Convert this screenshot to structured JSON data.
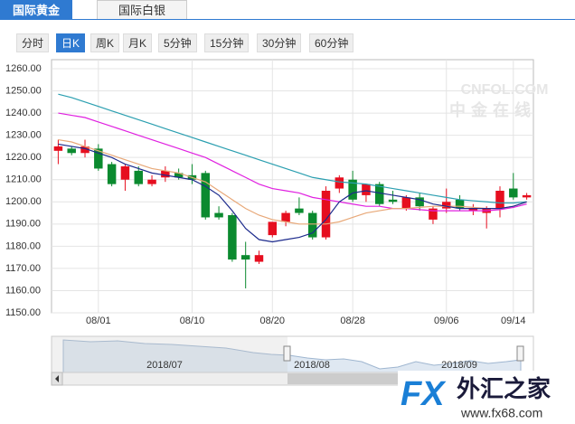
{
  "tabs": [
    "国际黄金",
    "国际白银"
  ],
  "buttons": [
    "分时",
    "日K",
    "周K",
    "月K",
    "5分钟",
    "15分钟",
    "30分钟",
    "60分钟"
  ],
  "watermark": [
    "CNFOL.COM",
    "中金在线"
  ],
  "navigator": {
    "labels": [
      "2018/07",
      "2018/08",
      "2018/09"
    ]
  },
  "logo": {
    "brand": "FX",
    "name": "外汇之家",
    "url": "www.fx68.com"
  },
  "chart_data": {
    "type": "candlestick",
    "categories": [
      null,
      null,
      null,
      "08/01",
      null,
      null,
      null,
      null,
      null,
      null,
      "08/10",
      null,
      null,
      null,
      null,
      null,
      "08/20",
      null,
      null,
      null,
      null,
      null,
      "08/28",
      null,
      null,
      null,
      null,
      null,
      null,
      "09/06",
      null,
      null,
      null,
      null,
      "09/14",
      null
    ],
    "open": [
      1223,
      1224,
      1222,
      1224,
      1217,
      1210,
      1214,
      1208,
      1211,
      1213,
      1212,
      1213,
      1195,
      1194,
      1176,
      1173,
      1185,
      1191,
      1197,
      1195,
      1184,
      1206,
      1210,
      1203,
      1208,
      1201,
      1197,
      1202,
      1192,
      1197,
      1201,
      1196,
      1195,
      1197,
      1206,
      1202
    ],
    "high": [
      1228,
      1225,
      1228,
      1226,
      1218,
      1217,
      1216,
      1212,
      1216,
      1215,
      1217,
      1214,
      1198,
      1195,
      1182,
      1178,
      1191,
      1196,
      1202,
      1196,
      1207,
      1212,
      1214,
      1208,
      1209,
      1205,
      1203,
      1204,
      1198,
      1206,
      1203,
      1199,
      1198,
      1207,
      1213,
      1204
    ],
    "low": [
      1217,
      1221,
      1220,
      1214,
      1207,
      1205,
      1207,
      1207,
      1209,
      1210,
      1208,
      1192,
      1192,
      1173,
      1161,
      1172,
      1184,
      1189,
      1194,
      1183,
      1183,
      1204,
      1200,
      1200,
      1198,
      1199,
      1196,
      1196,
      1190,
      1195,
      1196,
      1194,
      1188,
      1193,
      1201,
      1201
    ],
    "close": [
      1225,
      1222,
      1225,
      1215,
      1208,
      1216,
      1208,
      1210,
      1214,
      1211,
      1210,
      1193,
      1193,
      1174,
      1174,
      1176,
      1191,
      1195,
      1195,
      1184,
      1205,
      1211,
      1201,
      1208,
      1199,
      1200,
      1202,
      1198,
      1197,
      1200,
      1197,
      1197,
      1197,
      1205,
      1202,
      1203
    ],
    "up_color": "#e60e1f",
    "down_color": "#0b8a2f",
    "lines": [
      {
        "color": "#2b9fb0",
        "values": [
          1248.5,
          1247,
          1245,
          1243,
          1241,
          1239,
          1237,
          1235,
          1233,
          1231,
          1229,
          1227,
          1225,
          1223,
          1221,
          1219,
          1217,
          1215,
          1213,
          1211,
          1210,
          1209,
          1208.5,
          1208,
          1207,
          1206,
          1205,
          1204,
          1203,
          1202,
          1201,
          1200.5,
          1200,
          1199.5,
          1199.5,
          1200
        ]
      },
      {
        "color": "#e020e0",
        "values": [
          1240,
          1239,
          1238,
          1236,
          1234,
          1232,
          1230,
          1228,
          1226,
          1224,
          1222,
          1220,
          1217,
          1214,
          1211,
          1208,
          1206,
          1205,
          1204,
          1202,
          1201,
          1200,
          1199,
          1198,
          1198,
          1197,
          1197,
          1196.5,
          1196,
          1196,
          1196,
          1196,
          1196,
          1196.5,
          1197.5,
          1199
        ]
      },
      {
        "color": "#e8a878",
        "values": [
          1228,
          1227,
          1225,
          1223,
          1221,
          1219,
          1217,
          1215,
          1214,
          1213,
          1211,
          1209,
          1205,
          1201,
          1197,
          1194,
          1192,
          1191,
          1190,
          1190,
          1190,
          1191,
          1193,
          1195,
          1196,
          1197,
          1197,
          1197.5,
          1198,
          1198,
          1198,
          1197.5,
          1197,
          1197,
          1198,
          1200
        ]
      },
      {
        "color": "#1c2a8c",
        "values": [
          1226,
          1225,
          1224,
          1222,
          1220,
          1217,
          1215,
          1213,
          1212,
          1211,
          1210,
          1207,
          1203,
          1196,
          1188,
          1183,
          1182,
          1183,
          1184,
          1186,
          1192,
          1200,
          1204,
          1205,
          1204,
          1203,
          1202,
          1201,
          1199,
          1198,
          1197,
          1197,
          1197,
          1197,
          1198,
          1200
        ]
      }
    ],
    "ylim": [
      1150,
      1260
    ],
    "yticks": [
      {
        "value": 1150,
        "label": "1150.00"
      },
      {
        "value": 1160,
        "label": "1160.00"
      },
      {
        "value": 1170,
        "label": "1170.00"
      },
      {
        "value": 1180,
        "label": "1180.00"
      },
      {
        "value": 1190,
        "label": "1190.00"
      },
      {
        "value": 1200,
        "label": "1200.00"
      },
      {
        "value": 1210,
        "label": "1210.00"
      },
      {
        "value": 1220,
        "label": "1220.00"
      },
      {
        "value": 1230,
        "label": "1230.00"
      },
      {
        "value": 1240,
        "label": "1240.00"
      },
      {
        "value": 1250,
        "label": "1250.00"
      },
      {
        "value": 1260,
        "label": "1260.00"
      }
    ],
    "grid": true
  }
}
